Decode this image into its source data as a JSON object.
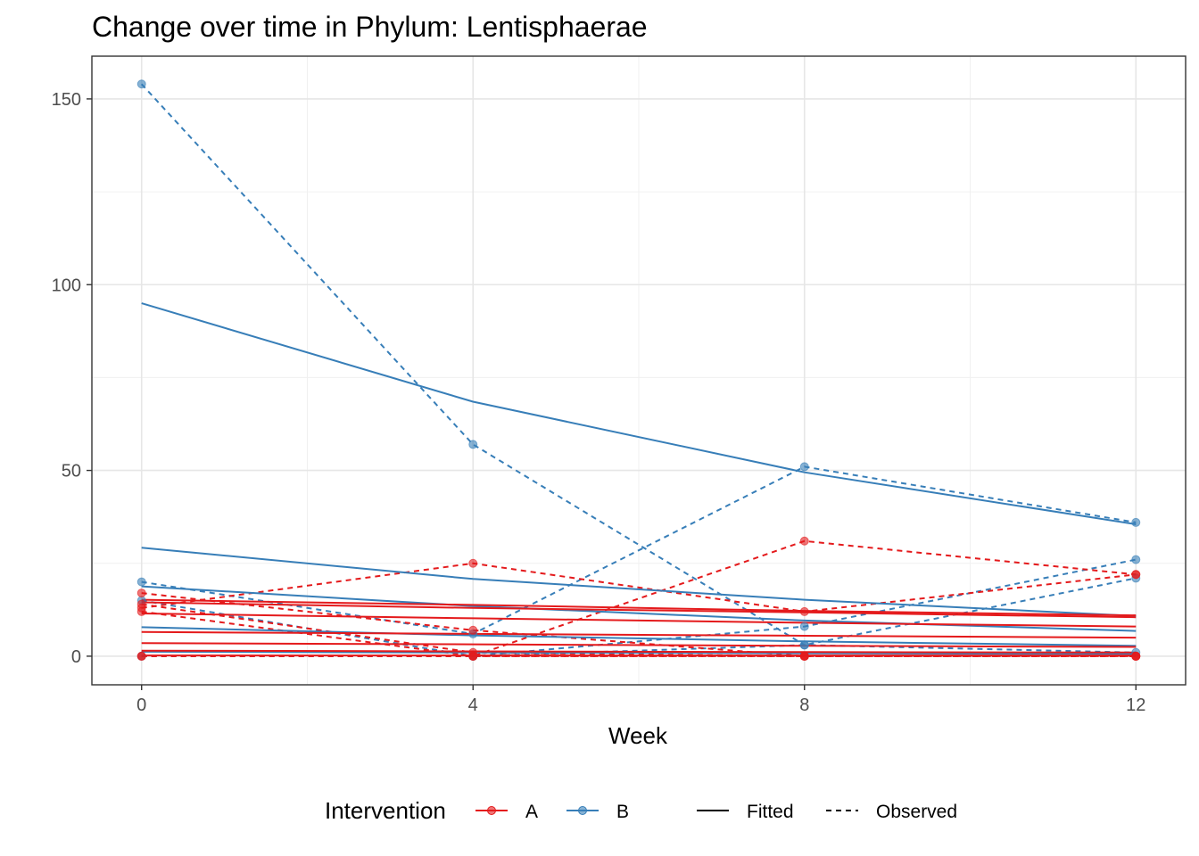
{
  "chart_data": {
    "type": "line",
    "title": "Change over time in Phylum: Lentisphaerae",
    "xlabel": "Week",
    "ylabel": "",
    "x_ticks": [
      0,
      4,
      8,
      12
    ],
    "y_ticks": [
      0,
      50,
      100,
      150
    ],
    "xlim": [
      -0.6,
      12.6
    ],
    "ylim": [
      -7.7,
      161.5
    ],
    "grid": true,
    "legend": {
      "position": "bottom",
      "color_title": "Intervention",
      "color_items": [
        {
          "label": "A",
          "color": "#E41A1C"
        },
        {
          "label": "B",
          "color": "#377EB8"
        }
      ],
      "linetype_items": [
        {
          "label": "Fitted",
          "dash": "solid"
        },
        {
          "label": "Observed",
          "dash": "dashed"
        }
      ]
    },
    "x": [
      0,
      4,
      8,
      12
    ],
    "series": [
      {
        "group": "B",
        "kind": "observed",
        "values": [
          154,
          57,
          3,
          1
        ]
      },
      {
        "group": "B",
        "kind": "observed",
        "values": [
          20,
          6,
          51,
          36
        ]
      },
      {
        "group": "B",
        "kind": "observed",
        "values": [
          15,
          0,
          8,
          26
        ]
      },
      {
        "group": "B",
        "kind": "observed",
        "values": [
          0,
          0,
          3,
          21
        ]
      },
      {
        "group": "A",
        "kind": "observed",
        "values": [
          13,
          25,
          12,
          22
        ]
      },
      {
        "group": "A",
        "kind": "observed",
        "values": [
          0,
          0,
          31,
          22
        ]
      },
      {
        "group": "A",
        "kind": "observed",
        "values": [
          17,
          7,
          0,
          0
        ]
      },
      {
        "group": "A",
        "kind": "observed",
        "values": [
          12,
          0,
          0,
          0
        ]
      },
      {
        "group": "A",
        "kind": "observed",
        "values": [
          14,
          1,
          0,
          0
        ]
      },
      {
        "group": "A",
        "kind": "observed",
        "values": [
          0,
          0,
          0,
          0
        ]
      },
      {
        "group": "B",
        "kind": "fitted",
        "values": [
          95,
          68.5,
          49.5,
          35.5
        ]
      },
      {
        "group": "B",
        "kind": "fitted",
        "values": [
          29.2,
          20.8,
          15.2,
          10.8
        ]
      },
      {
        "group": "B",
        "kind": "fitted",
        "values": [
          18.8,
          13.5,
          9.6,
          6.8
        ]
      },
      {
        "group": "B",
        "kind": "fitted",
        "values": [
          7.8,
          5.6,
          4.0,
          2.8
        ]
      },
      {
        "group": "B",
        "kind": "fitted",
        "values": [
          1.2,
          1.0,
          0.8,
          0.6
        ]
      },
      {
        "group": "A",
        "kind": "fitted",
        "values": [
          15.2,
          13.8,
          12.2,
          11.0
        ]
      },
      {
        "group": "A",
        "kind": "fitted",
        "values": [
          14.5,
          13.0,
          11.8,
          10.5
        ]
      },
      {
        "group": "A",
        "kind": "fitted",
        "values": [
          11.5,
          10.2,
          9.0,
          8.0
        ]
      },
      {
        "group": "A",
        "kind": "fitted",
        "values": [
          6.5,
          6.0,
          5.5,
          5.0
        ]
      },
      {
        "group": "A",
        "kind": "fitted",
        "values": [
          3.5,
          3.2,
          2.8,
          2.5
        ]
      },
      {
        "group": "A",
        "kind": "fitted",
        "values": [
          1.5,
          1.3,
          1.1,
          1.0
        ]
      },
      {
        "group": "A",
        "kind": "fitted",
        "values": [
          0.2,
          0.2,
          0.2,
          0.2
        ]
      }
    ]
  }
}
